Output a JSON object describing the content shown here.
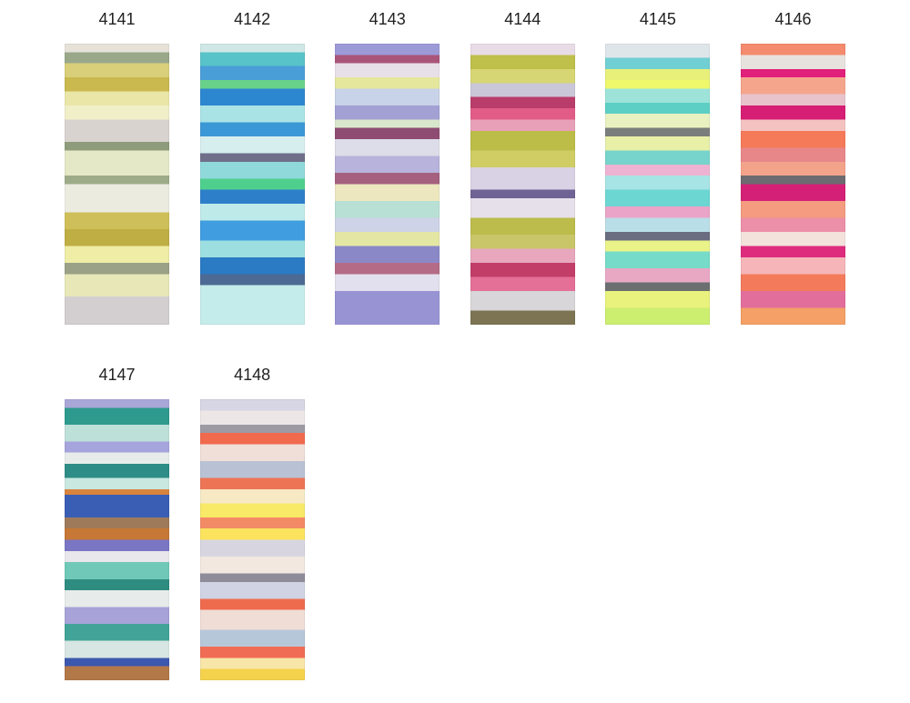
{
  "swatches": [
    {
      "label": "4141"
    },
    {
      "label": "4142"
    },
    {
      "label": "4143"
    },
    {
      "label": "4144"
    },
    {
      "label": "4145"
    },
    {
      "label": "4146"
    },
    {
      "label": "4147"
    },
    {
      "label": "4148"
    }
  ]
}
